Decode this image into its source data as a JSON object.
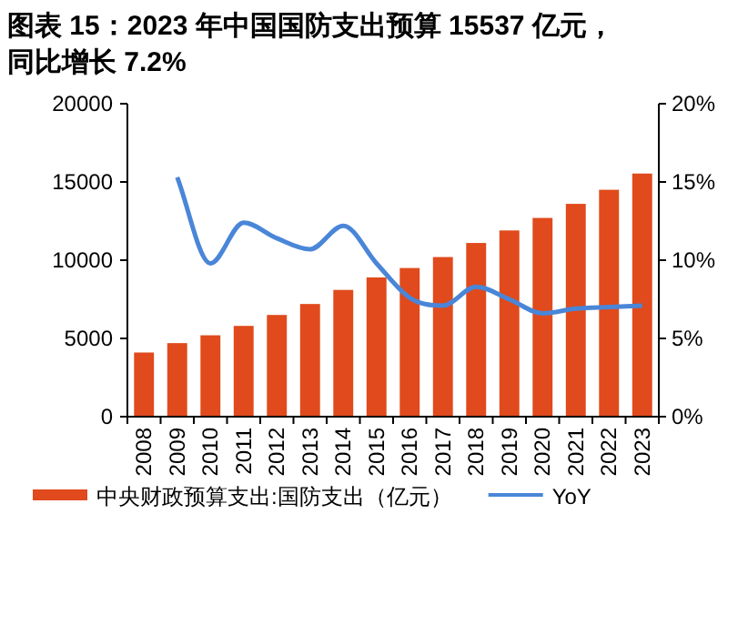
{
  "chart_data": {
    "type": "bar",
    "title": "图表 15：2023 年中国国防支出预算 15537 亿元，同比增长 7.2%",
    "categories": [
      "2008",
      "2009",
      "2010",
      "2011",
      "2012",
      "2013",
      "2014",
      "2015",
      "2016",
      "2017",
      "2018",
      "2019",
      "2020",
      "2021",
      "2022",
      "2023"
    ],
    "series": [
      {
        "name": "中央财政预算支出:国防支出（亿元）",
        "color": "#e04a1c",
        "values": [
          4100,
          4700,
          5200,
          5800,
          6500,
          7200,
          8100,
          8900,
          9500,
          10200,
          11100,
          11900,
          12700,
          13600,
          14500,
          15537
        ]
      },
      {
        "name": "YoY",
        "type": "line",
        "axis": "y2",
        "color": "#4a86d8",
        "values": [
          null,
          15.3,
          9.8,
          12.4,
          11.4,
          10.7,
          12.2,
          9.8,
          7.6,
          7.1,
          8.3,
          7.5,
          6.6,
          6.9,
          7.0,
          7.1
        ]
      }
    ],
    "ylim": [
      0,
      20000
    ],
    "yticks": [
      0,
      5000,
      10000,
      15000,
      20000
    ],
    "y2lim": [
      0,
      20
    ],
    "y2ticks": [
      {
        "value": 0,
        "label": "0%"
      },
      {
        "value": 5,
        "label": "5%"
      },
      {
        "value": 10,
        "label": "10%"
      },
      {
        "value": 15,
        "label": "15%"
      },
      {
        "value": 20,
        "label": "20%"
      }
    ],
    "grid": false,
    "legend": "bottom",
    "marker": "none",
    "line_style": "solid"
  }
}
